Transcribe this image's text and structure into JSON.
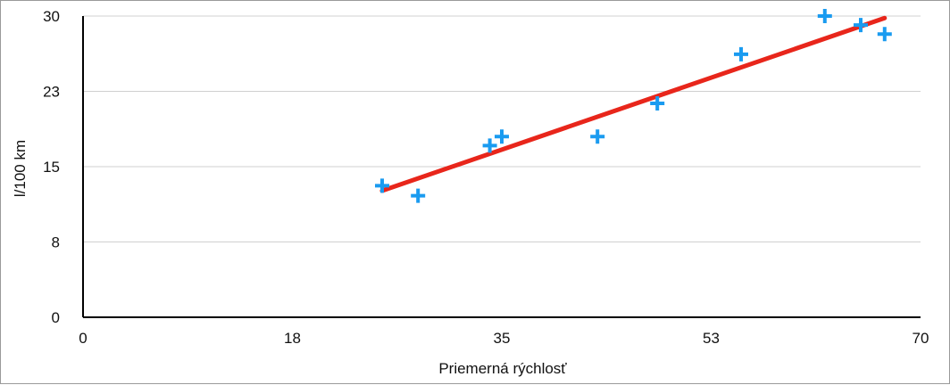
{
  "chart_data": {
    "type": "scatter",
    "title": "",
    "xlabel": "Priemerná rýchlosť",
    "ylabel": "l/100 km",
    "xlim": [
      0,
      70
    ],
    "ylim": [
      0,
      30
    ],
    "x_ticks": [
      {
        "value": 0,
        "label": "0"
      },
      {
        "value": 17.5,
        "label": "18"
      },
      {
        "value": 35,
        "label": "35"
      },
      {
        "value": 52.5,
        "label": "53"
      },
      {
        "value": 70,
        "label": "70"
      }
    ],
    "y_ticks": [
      {
        "value": 0,
        "label": "0"
      },
      {
        "value": 7.5,
        "label": "8"
      },
      {
        "value": 15,
        "label": "15"
      },
      {
        "value": 22.5,
        "label": "23"
      },
      {
        "value": 30,
        "label": "30"
      }
    ],
    "grid": true,
    "legend": "none",
    "series": [
      {
        "marker": "plus",
        "color": "#1a9bf0",
        "points": [
          {
            "x": 25.0,
            "y": 13.1
          },
          {
            "x": 28.0,
            "y": 12.1
          },
          {
            "x": 34.0,
            "y": 17.1
          },
          {
            "x": 35.0,
            "y": 18.0
          },
          {
            "x": 43.0,
            "y": 18.0
          },
          {
            "x": 48.0,
            "y": 21.3
          },
          {
            "x": 55.0,
            "y": 26.2
          },
          {
            "x": 62.0,
            "y": 30.0
          },
          {
            "x": 65.0,
            "y": 29.1
          },
          {
            "x": 67.0,
            "y": 28.2
          }
        ]
      }
    ],
    "trendline": {
      "type": "linear",
      "color": "#e8261b",
      "start": {
        "x": 25.0,
        "y": 12.6
      },
      "end": {
        "x": 67.0,
        "y": 29.8
      }
    }
  }
}
